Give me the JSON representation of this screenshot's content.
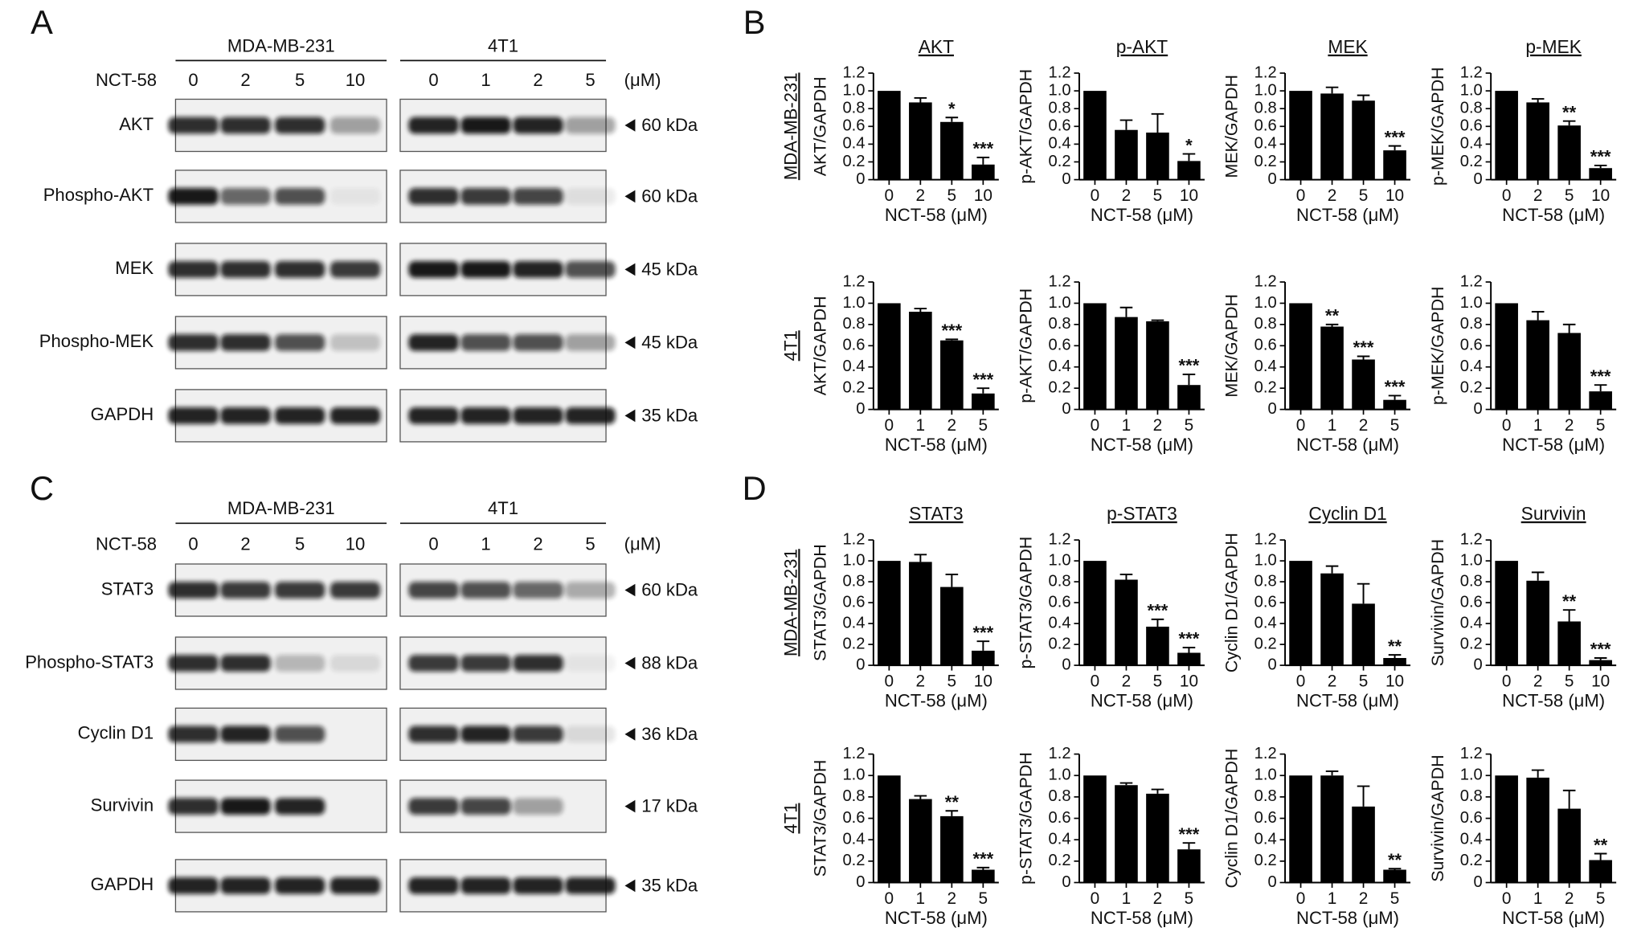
{
  "panel_labels": [
    "A",
    "B",
    "C",
    "D"
  ],
  "blots": [
    {
      "treatment": "NCT-58",
      "unit": "(μM)",
      "lines": [
        {
          "name": "MDA-MB-231",
          "doses": [
            "0",
            "2",
            "5",
            "10"
          ]
        },
        {
          "name": "4T1",
          "doses": [
            "0",
            "1",
            "2",
            "5"
          ]
        }
      ],
      "rows": [
        {
          "label": "AKT",
          "size": "60 kDa"
        },
        {
          "label": "Phospho-AKT",
          "size": "60 kDa"
        },
        {
          "label": "MEK",
          "size": "45 kDa"
        },
        {
          "label": "Phospho-MEK",
          "size": "45 kDa"
        },
        {
          "label": "GAPDH",
          "size": "35 kDa"
        }
      ]
    },
    {
      "treatment": "NCT-58",
      "unit": "(μM)",
      "lines": [
        {
          "name": "MDA-MB-231",
          "doses": [
            "0",
            "2",
            "5",
            "10"
          ]
        },
        {
          "name": "4T1",
          "doses": [
            "0",
            "1",
            "2",
            "5"
          ]
        }
      ],
      "rows": [
        {
          "label": "STAT3",
          "size": "60 kDa"
        },
        {
          "label": "Phospho-STAT3",
          "size": "88 kDa"
        },
        {
          "label": "Cyclin D1",
          "size": "36 kDa"
        },
        {
          "label": "Survivin",
          "size": "17 kDa"
        },
        {
          "label": "GAPDH",
          "size": "35 kDa"
        }
      ]
    }
  ],
  "chart_data": [
    {
      "type": "bar",
      "row_label": "MDA-MB-231",
      "title": "AKT",
      "ylabel": "AKT/GAPDH",
      "xlabel": "NCT-58 (μM)",
      "categories": [
        "0",
        "2",
        "5",
        "10"
      ],
      "values": [
        1.0,
        0.87,
        0.65,
        0.17
      ],
      "errors": [
        0,
        0.05,
        0.05,
        0.08
      ],
      "annotations": [
        null,
        null,
        "*",
        "***"
      ],
      "color": "#000000",
      "ylim": [
        0,
        1.2
      ],
      "yticks": [
        0,
        0.2,
        0.4,
        0.6,
        0.8,
        {
          "value": 1,
          "label": "1.0"
        },
        1.2
      ]
    },
    {
      "type": "bar",
      "title": "p-AKT",
      "ylabel": "p-AKT/GAPDH",
      "xlabel": "NCT-58 (μM)",
      "categories": [
        "0",
        "2",
        "5",
        "10"
      ],
      "values": [
        1.0,
        0.56,
        0.53,
        0.21
      ],
      "errors": [
        0,
        0.11,
        0.21,
        0.08
      ],
      "annotations": [
        null,
        null,
        null,
        "*"
      ],
      "color": "#000000",
      "ylim": [
        0,
        1.2
      ],
      "yticks": [
        0,
        0.2,
        0.4,
        0.6,
        0.8,
        {
          "value": 1,
          "label": "1.0"
        },
        1.2
      ]
    },
    {
      "type": "bar",
      "title": "MEK",
      "ylabel": "MEK/GAPDH",
      "xlabel": "NCT-58 (μM)",
      "categories": [
        "0",
        "2",
        "5",
        "10"
      ],
      "values": [
        1.0,
        0.97,
        0.89,
        0.33
      ],
      "errors": [
        0,
        0.07,
        0.06,
        0.05
      ],
      "annotations": [
        null,
        null,
        null,
        "***"
      ],
      "color": "#000000",
      "ylim": [
        0,
        1.2
      ],
      "yticks": [
        0,
        0.2,
        0.4,
        0.6,
        0.8,
        {
          "value": 1,
          "label": "1.0"
        },
        1.2
      ]
    },
    {
      "type": "bar",
      "title": "p-MEK",
      "ylabel": "p-MEK/GAPDH",
      "xlabel": "NCT-58 (μM)",
      "categories": [
        "0",
        "2",
        "5",
        "10"
      ],
      "values": [
        1.0,
        0.87,
        0.61,
        0.13
      ],
      "errors": [
        0,
        0.04,
        0.05,
        0.03
      ],
      "annotations": [
        null,
        null,
        "**",
        "***"
      ],
      "color": "#000000",
      "ylim": [
        0,
        1.2
      ],
      "yticks": [
        0,
        0.2,
        0.4,
        0.6,
        0.8,
        {
          "value": 1,
          "label": "1.0"
        },
        1.2
      ]
    },
    {
      "type": "bar",
      "row_label": "4T1",
      "ylabel": "AKT/GAPDH",
      "xlabel": "NCT-58 (μM)",
      "categories": [
        "0",
        "1",
        "2",
        "5"
      ],
      "values": [
        1.0,
        0.92,
        0.65,
        0.15
      ],
      "errors": [
        0,
        0.03,
        0.01,
        0.05
      ],
      "annotations": [
        null,
        null,
        "***",
        "***"
      ],
      "color": "#000000",
      "ylim": [
        0,
        1.2
      ],
      "yticks": [
        0,
        0.2,
        0.4,
        0.6,
        0.8,
        {
          "value": 1,
          "label": "1.0"
        },
        1.2
      ]
    },
    {
      "type": "bar",
      "ylabel": "p-AKT/GAPDH",
      "xlabel": "NCT-58 (μM)",
      "categories": [
        "0",
        "1",
        "2",
        "5"
      ],
      "values": [
        1.0,
        0.87,
        0.83,
        0.23
      ],
      "errors": [
        0,
        0.09,
        0.01,
        0.1
      ],
      "annotations": [
        null,
        null,
        null,
        "***"
      ],
      "color": "#000000",
      "ylim": [
        0,
        1.2
      ],
      "yticks": [
        0,
        0.2,
        0.4,
        0.6,
        0.8,
        {
          "value": 1,
          "label": "1.0"
        },
        1.2
      ]
    },
    {
      "type": "bar",
      "ylabel": "MEK/GAPDH",
      "xlabel": "NCT-58 (μM)",
      "categories": [
        "0",
        "1",
        "2",
        "5"
      ],
      "values": [
        1.0,
        0.78,
        0.47,
        0.09
      ],
      "errors": [
        0,
        0.02,
        0.03,
        0.04
      ],
      "annotations": [
        null,
        "**",
        "***",
        "***"
      ],
      "color": "#000000",
      "ylim": [
        0,
        1.2
      ],
      "yticks": [
        0,
        0.2,
        0.4,
        0.6,
        0.8,
        {
          "value": 1,
          "label": "1.0"
        },
        1.2
      ]
    },
    {
      "type": "bar",
      "ylabel": "p-MEK/GAPDH",
      "xlabel": "NCT-58 (μM)",
      "categories": [
        "0",
        "1",
        "2",
        "5"
      ],
      "values": [
        1.0,
        0.84,
        0.72,
        0.17
      ],
      "errors": [
        0,
        0.08,
        0.08,
        0.06
      ],
      "annotations": [
        null,
        null,
        null,
        "***"
      ],
      "color": "#000000",
      "ylim": [
        0,
        1.2
      ],
      "yticks": [
        0,
        0.2,
        0.4,
        0.6,
        0.8,
        {
          "value": 1,
          "label": "1.0"
        },
        1.2
      ]
    },
    {
      "type": "bar",
      "row_label": "MDA-MB-231",
      "title": "STAT3",
      "ylabel": "STAT3/GAPDH",
      "xlabel": "NCT-58 (μM)",
      "categories": [
        "0",
        "2",
        "5",
        "10"
      ],
      "values": [
        1.0,
        0.99,
        0.75,
        0.14
      ],
      "errors": [
        0,
        0.07,
        0.12,
        0.09
      ],
      "annotations": [
        null,
        null,
        null,
        "***"
      ],
      "color": "#000000",
      "ylim": [
        0,
        1.2
      ],
      "yticks": [
        0,
        0.2,
        0.4,
        0.6,
        0.8,
        {
          "value": 1,
          "label": "1.0"
        },
        1.2
      ]
    },
    {
      "type": "bar",
      "title": "p-STAT3",
      "ylabel": "p-STAT3/GAPDH",
      "xlabel": "NCT-58 (μM)",
      "categories": [
        "0",
        "2",
        "5",
        "10"
      ],
      "values": [
        1.0,
        0.82,
        0.37,
        0.12
      ],
      "errors": [
        0,
        0.05,
        0.07,
        0.05
      ],
      "annotations": [
        null,
        null,
        "***",
        "***"
      ],
      "color": "#000000",
      "ylim": [
        0,
        1.2
      ],
      "yticks": [
        0,
        0.2,
        0.4,
        0.6,
        0.8,
        {
          "value": 1,
          "label": "1.0"
        },
        1.2
      ]
    },
    {
      "type": "bar",
      "title": "Cyclin D1",
      "ylabel": "Cyclin D1/GAPDH",
      "xlabel": "NCT-58 (μM)",
      "categories": [
        "0",
        "2",
        "5",
        "10"
      ],
      "values": [
        1.0,
        0.88,
        0.59,
        0.07
      ],
      "errors": [
        0,
        0.07,
        0.19,
        0.03
      ],
      "annotations": [
        null,
        null,
        null,
        "**"
      ],
      "color": "#000000",
      "ylim": [
        0,
        1.2
      ],
      "yticks": [
        0,
        0.2,
        0.4,
        0.6,
        0.8,
        {
          "value": 1,
          "label": "1.0"
        },
        1.2
      ]
    },
    {
      "type": "bar",
      "title": "Survivin",
      "ylabel": "Survivin/GAPDH",
      "xlabel": "NCT-58 (μM)",
      "categories": [
        "0",
        "2",
        "5",
        "10"
      ],
      "values": [
        1.0,
        0.81,
        0.42,
        0.05
      ],
      "errors": [
        0,
        0.08,
        0.11,
        0.02
      ],
      "annotations": [
        null,
        null,
        "**",
        "***"
      ],
      "color": "#000000",
      "ylim": [
        0,
        1.2
      ],
      "yticks": [
        0,
        0.2,
        0.4,
        0.6,
        0.8,
        {
          "value": 1,
          "label": "1.0"
        },
        1.2
      ]
    },
    {
      "type": "bar",
      "row_label": "4T1",
      "ylabel": "STAT3/GAPDH",
      "xlabel": "NCT-58 (μM)",
      "categories": [
        "0",
        "1",
        "2",
        "5"
      ],
      "values": [
        1.0,
        0.78,
        0.62,
        0.12
      ],
      "errors": [
        0,
        0.03,
        0.05,
        0.02
      ],
      "annotations": [
        null,
        null,
        "**",
        "***"
      ],
      "color": "#000000",
      "ylim": [
        0,
        1.2
      ],
      "yticks": [
        0,
        0.2,
        0.4,
        0.6,
        0.8,
        {
          "value": 1,
          "label": "1.0"
        },
        1.2
      ]
    },
    {
      "type": "bar",
      "ylabel": "p-STAT3/GAPDH",
      "xlabel": "NCT-58 (μM)",
      "categories": [
        "0",
        "1",
        "2",
        "5"
      ],
      "values": [
        1.0,
        0.91,
        0.83,
        0.31
      ],
      "errors": [
        0,
        0.02,
        0.04,
        0.06
      ],
      "annotations": [
        null,
        null,
        null,
        "***"
      ],
      "color": "#000000",
      "ylim": [
        0,
        1.2
      ],
      "yticks": [
        0,
        0.2,
        0.4,
        0.6,
        0.8,
        {
          "value": 1,
          "label": "1.0"
        },
        1.2
      ]
    },
    {
      "type": "bar",
      "ylabel": "Cyclin D1/GAPDH",
      "xlabel": "NCT-58 (μM)",
      "categories": [
        "0",
        "1",
        "2",
        "5"
      ],
      "values": [
        1.0,
        1.0,
        0.71,
        0.12
      ],
      "errors": [
        0,
        0.04,
        0.19,
        0.01
      ],
      "annotations": [
        null,
        null,
        null,
        "**"
      ],
      "color": "#000000",
      "ylim": [
        0,
        1.2
      ],
      "yticks": [
        0,
        0.2,
        0.4,
        0.6,
        0.8,
        {
          "value": 1,
          "label": "1.0"
        },
        1.2
      ]
    },
    {
      "type": "bar",
      "ylabel": "Survivin/GAPDH",
      "xlabel": "NCT-58 (μM)",
      "categories": [
        "0",
        "1",
        "2",
        "5"
      ],
      "values": [
        1.0,
        0.98,
        0.69,
        0.21
      ],
      "errors": [
        0,
        0.07,
        0.17,
        0.06
      ],
      "annotations": [
        null,
        null,
        null,
        "**"
      ],
      "color": "#000000",
      "ylim": [
        0,
        1.2
      ],
      "yticks": [
        0,
        0.2,
        0.4,
        0.6,
        0.8,
        {
          "value": 1,
          "label": "1.0"
        },
        1.2
      ]
    }
  ]
}
